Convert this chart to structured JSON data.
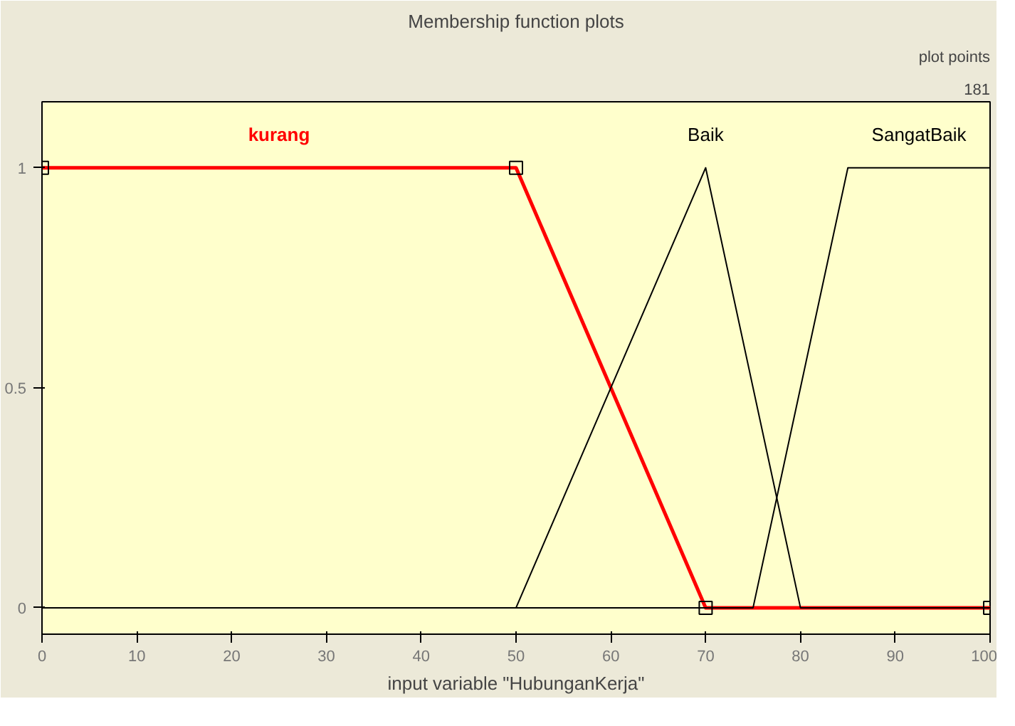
{
  "chart_data": {
    "type": "line",
    "title": "Membership function plots",
    "xlabel": "input variable \"HubunganKerja\"",
    "xlim": [
      0,
      100
    ],
    "ylim": [
      -0.06,
      1.15
    ],
    "xticks": [
      0,
      10,
      20,
      30,
      40,
      50,
      60,
      70,
      80,
      90,
      100
    ],
    "yticks": [
      0,
      0.5,
      1
    ],
    "grid": false,
    "annotations": [
      "plot points",
      "181"
    ],
    "series": [
      {
        "name": "kurang",
        "color": "#ff0000",
        "marker": "square",
        "x": [
          0,
          50,
          70,
          100
        ],
        "values": [
          1,
          1,
          0,
          0
        ]
      },
      {
        "name": "Baik",
        "color": "#000000",
        "marker": "none",
        "x": [
          0,
          50,
          70,
          80,
          100
        ],
        "values": [
          0,
          0,
          1,
          0,
          0
        ]
      },
      {
        "name": "SangatBaik",
        "color": "#000000",
        "marker": "none",
        "x": [
          0,
          75,
          85,
          100
        ],
        "values": [
          0,
          0,
          1,
          1
        ]
      }
    ]
  }
}
